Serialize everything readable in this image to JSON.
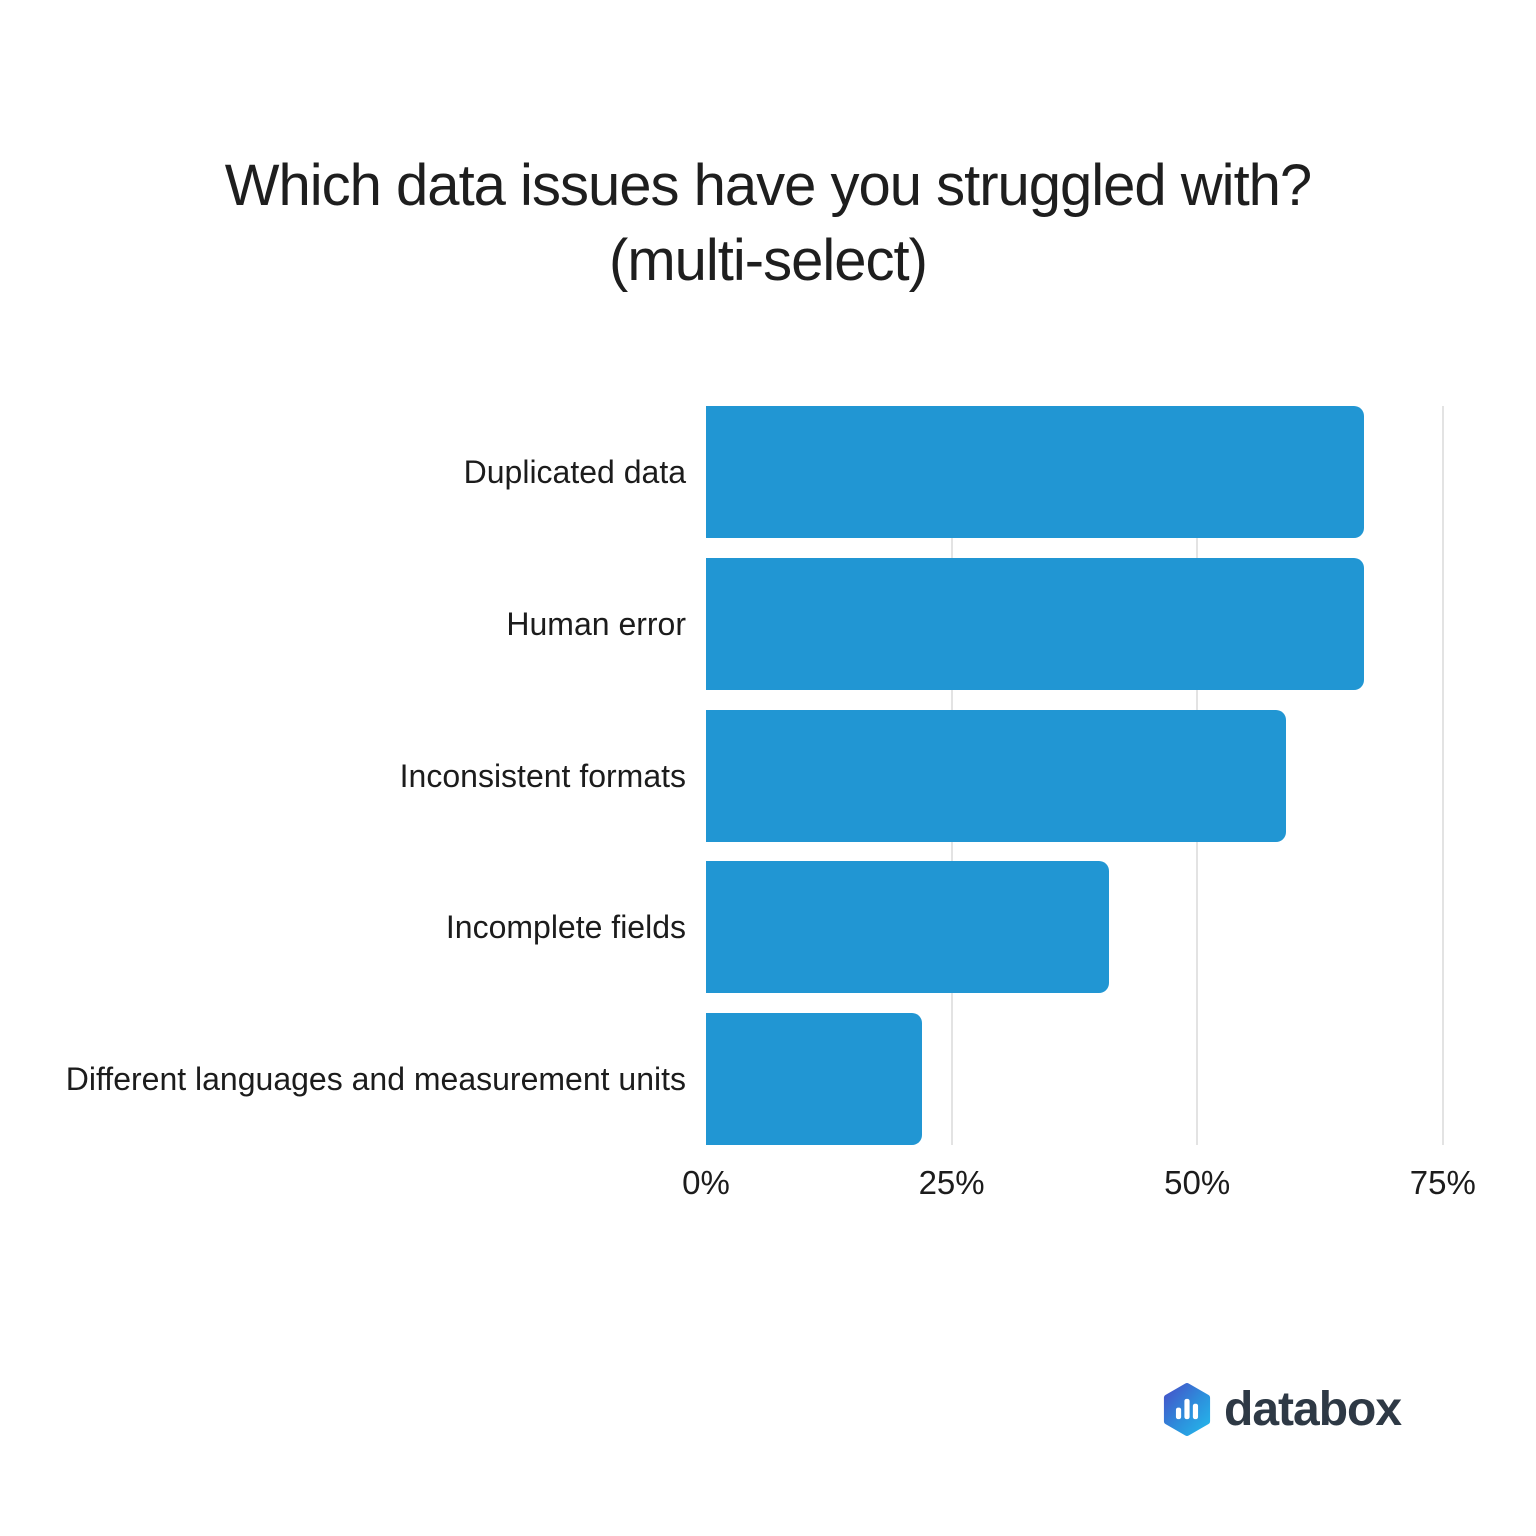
{
  "title": {
    "line1": "Which data issues have you struggled with?",
    "line2": "(multi-select)"
  },
  "chart_data": {
    "type": "bar",
    "orientation": "horizontal",
    "title": "Which data issues have you struggled with? (multi-select)",
    "categories": [
      "Duplicated data",
      "Human error",
      "Inconsistent formats",
      "Incomplete fields",
      "Different languages and measurement units"
    ],
    "values": [
      67,
      67,
      59,
      41,
      22
    ],
    "unit": "%",
    "xlabel": "",
    "ylabel": "",
    "x_ticks": [
      0,
      25,
      50,
      75
    ],
    "x_tick_labels": [
      "0%",
      "25%",
      "50%%",
      "75%"
    ],
    "xlim": [
      0,
      76.75
    ],
    "grid": "vertical-light",
    "legend_position": "none",
    "bar_color": "#2196d3",
    "gridline_color": "#e3e3e3"
  },
  "branding": {
    "wordmark": "databox",
    "logo_icon": "databox-hexagon-bars-icon",
    "wordmark_color": "#2e3945",
    "hexagon_gradient_start": "#4553c9",
    "hexagon_gradient_end": "#25b5ea"
  }
}
